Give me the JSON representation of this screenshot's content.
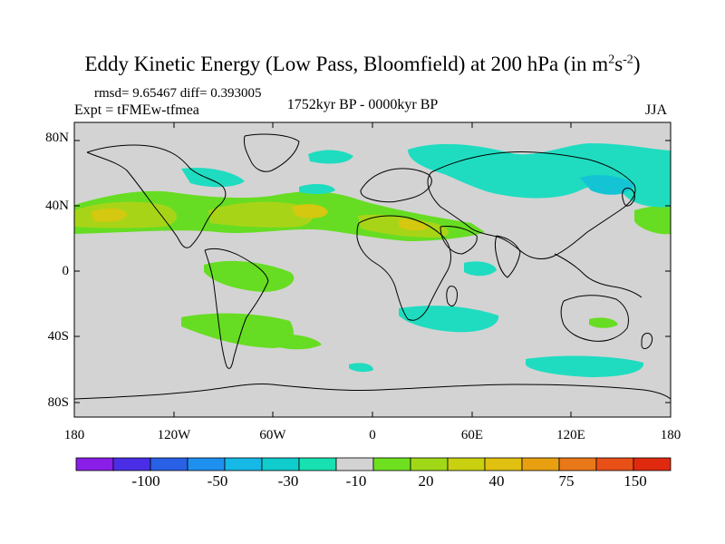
{
  "title": {
    "main": "Eddy Kinetic Energy (Low Pass, Bloomfield) at 200 hPa (in m",
    "sup1": "2",
    "mid": "s",
    "sup2": "-2",
    "end": ")"
  },
  "stats": "rmsd= 9.65467 diff= 0.393005",
  "experiment": "Expt = tFMEw-tfmea",
  "period": "1752kyr BP - 0000kyr BP",
  "season": "JJA",
  "axes": {
    "lat_ticks": [
      "80N",
      "40N",
      "0",
      "40S",
      "80S"
    ],
    "lon_ticks": [
      "180",
      "120W",
      "60W",
      "0",
      "60E",
      "120E",
      "180"
    ]
  },
  "colorbar": {
    "labels": [
      "-100",
      "-50",
      "-30",
      "-10",
      "20",
      "40",
      "75",
      "150"
    ],
    "colors": [
      "#8a1ee6",
      "#4a2ee6",
      "#2860e6",
      "#1e90f0",
      "#16b8e6",
      "#10cccc",
      "#18e0b0",
      "#d3d3d3",
      "#6ee020",
      "#a0d818",
      "#c8d010",
      "#e0c010",
      "#e8a010",
      "#e87818",
      "#e85018",
      "#e02a10"
    ]
  },
  "map_colors": {
    "background": "#d3d3d3",
    "pos_weak": "#66dd22",
    "pos_mid": "#a8d418",
    "pos_strong": "#d4c810",
    "neg_weak": "#1fdcc0",
    "neg_mid": "#14c4d4"
  }
}
